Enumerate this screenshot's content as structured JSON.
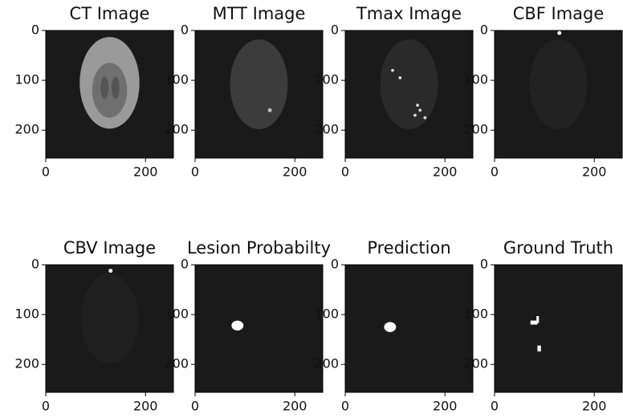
{
  "chart_data": [
    {
      "type": "image",
      "title": "CT Image",
      "xlim": [
        0,
        256
      ],
      "ylim": [
        256,
        0
      ],
      "xticks": [
        0,
        200
      ],
      "yticks": [
        0,
        100,
        200
      ]
    },
    {
      "type": "image",
      "title": "MTT Image",
      "xlim": [
        0,
        256
      ],
      "ylim": [
        256,
        0
      ],
      "xticks": [
        0,
        200
      ],
      "yticks": [
        0,
        100,
        200
      ]
    },
    {
      "type": "image",
      "title": "Tmax Image",
      "xlim": [
        0,
        256
      ],
      "ylim": [
        256,
        0
      ],
      "xticks": [
        0,
        200
      ],
      "yticks": [
        0,
        100,
        200
      ]
    },
    {
      "type": "image",
      "title": "CBF Image",
      "xlim": [
        0,
        256
      ],
      "ylim": [
        256,
        0
      ],
      "xticks": [
        0,
        200
      ],
      "yticks": [
        0,
        100,
        200
      ]
    },
    {
      "type": "image",
      "title": "CBV Image",
      "xlim": [
        0,
        256
      ],
      "ylim": [
        256,
        0
      ],
      "xticks": [
        0,
        200
      ],
      "yticks": [
        0,
        100,
        200
      ]
    },
    {
      "type": "image",
      "title": "Lesion Probabilty",
      "xlim": [
        0,
        256
      ],
      "ylim": [
        256,
        0
      ],
      "xticks": [
        0,
        200
      ],
      "yticks": [
        0,
        100,
        200
      ]
    },
    {
      "type": "image",
      "title": "Prediction",
      "xlim": [
        0,
        256
      ],
      "ylim": [
        256,
        0
      ],
      "xticks": [
        0,
        200
      ],
      "yticks": [
        0,
        100,
        200
      ]
    },
    {
      "type": "image",
      "title": "Ground Truth",
      "xlim": [
        0,
        256
      ],
      "ylim": [
        256,
        0
      ],
      "xticks": [
        0,
        200
      ],
      "yticks": [
        0,
        100,
        200
      ]
    }
  ]
}
